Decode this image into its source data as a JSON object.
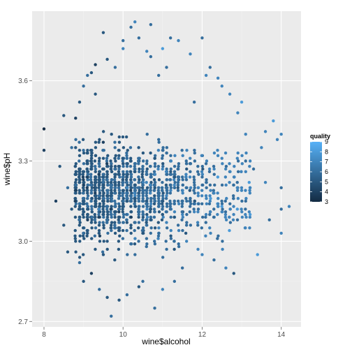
{
  "chart_data": {
    "type": "scatter",
    "title": "",
    "xlabel": "wine$alcohol",
    "ylabel": "wine$pH",
    "xlim": [
      7.7,
      14.5
    ],
    "ylim": [
      2.68,
      3.86
    ],
    "x_ticks": [
      8,
      10,
      12,
      14
    ],
    "y_ticks": [
      2.7,
      3.0,
      3.3,
      3.6
    ],
    "x_tick_labels": [
      "8",
      "10",
      "12",
      "14"
    ],
    "y_tick_labels": [
      "2.7",
      "3.0",
      "3.3",
      "3.6"
    ],
    "grid": true,
    "background_color": "#ebebeb",
    "grid_major_color": "#ffffff",
    "grid_minor_color": "#f4f4f4",
    "legend": {
      "title": "quality",
      "placement": "right",
      "type": "colorbar",
      "min": 3,
      "max": 9,
      "labels": [
        "9",
        "8",
        "7",
        "6",
        "5",
        "4",
        "3"
      ],
      "values": [
        9,
        8,
        7,
        6,
        5,
        4,
        3
      ],
      "color_low": "#132b43",
      "color_high": "#56b1f7"
    },
    "points": [
      {
        "x": 8.0,
        "y": 3.42,
        "q": 3
      },
      {
        "x": 8.0,
        "y": 3.34,
        "q": 4
      },
      {
        "x": 8.5,
        "y": 3.06,
        "q": 5
      },
      {
        "x": 8.5,
        "y": 3.47,
        "q": 5
      },
      {
        "x": 8.6,
        "y": 3.2,
        "q": 6
      },
      {
        "x": 8.7,
        "y": 3.12,
        "q": 5
      },
      {
        "x": 8.7,
        "y": 3.35,
        "q": 6
      },
      {
        "x": 8.8,
        "y": 3.0,
        "q": 5
      },
      {
        "x": 8.8,
        "y": 3.25,
        "q": 5
      },
      {
        "x": 8.8,
        "y": 3.46,
        "q": 4
      },
      {
        "x": 8.9,
        "y": 2.92,
        "q": 6
      },
      {
        "x": 8.9,
        "y": 3.52,
        "q": 5
      },
      {
        "x": 9.0,
        "y": 2.85,
        "q": 5
      },
      {
        "x": 9.0,
        "y": 3.58,
        "q": 6
      },
      {
        "x": 9.1,
        "y": 3.62,
        "q": 6
      },
      {
        "x": 9.2,
        "y": 2.88,
        "q": 4
      },
      {
        "x": 9.3,
        "y": 3.55,
        "q": 5
      },
      {
        "x": 9.4,
        "y": 2.82,
        "q": 6
      },
      {
        "x": 9.5,
        "y": 3.78,
        "q": 5
      },
      {
        "x": 9.5,
        "y": 2.95,
        "q": 5
      },
      {
        "x": 9.6,
        "y": 3.68,
        "q": 5
      },
      {
        "x": 9.7,
        "y": 2.72,
        "q": 6
      },
      {
        "x": 9.8,
        "y": 3.65,
        "q": 6
      },
      {
        "x": 9.9,
        "y": 2.78,
        "q": 5
      },
      {
        "x": 10.0,
        "y": 3.72,
        "q": 7
      },
      {
        "x": 10.1,
        "y": 2.8,
        "q": 6
      },
      {
        "x": 10.2,
        "y": 3.8,
        "q": 6
      },
      {
        "x": 10.3,
        "y": 3.82,
        "q": 7
      },
      {
        "x": 10.4,
        "y": 3.76,
        "q": 6
      },
      {
        "x": 10.5,
        "y": 2.85,
        "q": 6
      },
      {
        "x": 10.6,
        "y": 3.71,
        "q": 7
      },
      {
        "x": 10.7,
        "y": 3.81,
        "q": 6
      },
      {
        "x": 10.8,
        "y": 2.75,
        "q": 6
      },
      {
        "x": 10.9,
        "y": 3.62,
        "q": 6
      },
      {
        "x": 11.0,
        "y": 2.82,
        "q": 7
      },
      {
        "x": 11.1,
        "y": 3.65,
        "q": 6
      },
      {
        "x": 11.2,
        "y": 3.76,
        "q": 6
      },
      {
        "x": 11.4,
        "y": 3.75,
        "q": 7
      },
      {
        "x": 11.5,
        "y": 2.9,
        "q": 6
      },
      {
        "x": 11.7,
        "y": 3.7,
        "q": 7
      },
      {
        "x": 11.8,
        "y": 3.52,
        "q": 6
      },
      {
        "x": 12.0,
        "y": 2.95,
        "q": 7
      },
      {
        "x": 12.1,
        "y": 3.62,
        "q": 7
      },
      {
        "x": 12.2,
        "y": 3.65,
        "q": 6
      },
      {
        "x": 12.3,
        "y": 2.93,
        "q": 6
      },
      {
        "x": 12.5,
        "y": 3.58,
        "q": 7
      },
      {
        "x": 12.7,
        "y": 3.55,
        "q": 7
      },
      {
        "x": 12.8,
        "y": 2.88,
        "q": 5
      },
      {
        "x": 13.0,
        "y": 3.52,
        "q": 8
      },
      {
        "x": 13.1,
        "y": 3.4,
        "q": 7
      },
      {
        "x": 13.2,
        "y": 3.05,
        "q": 7
      },
      {
        "x": 13.3,
        "y": 3.27,
        "q": 6
      },
      {
        "x": 13.4,
        "y": 2.95,
        "q": 8
      },
      {
        "x": 13.5,
        "y": 3.35,
        "q": 7
      },
      {
        "x": 13.6,
        "y": 3.22,
        "q": 7
      },
      {
        "x": 13.6,
        "y": 3.41,
        "q": 7
      },
      {
        "x": 13.7,
        "y": 3.08,
        "q": 6
      },
      {
        "x": 13.8,
        "y": 3.45,
        "q": 8
      },
      {
        "x": 13.9,
        "y": 3.38,
        "q": 7
      },
      {
        "x": 14.0,
        "y": 3.4,
        "q": 7
      },
      {
        "x": 14.0,
        "y": 3.12,
        "q": 6
      },
      {
        "x": 14.0,
        "y": 3.03,
        "q": 7
      },
      {
        "x": 14.0,
        "y": 3.2,
        "q": 6
      },
      {
        "x": 14.2,
        "y": 3.13,
        "q": 7
      },
      {
        "x": 12.0,
        "y": 3.76,
        "q": 6
      },
      {
        "x": 11.0,
        "y": 3.72,
        "q": 8
      },
      {
        "x": 10.0,
        "y": 3.75,
        "q": 6
      },
      {
        "x": 9.3,
        "y": 3.66,
        "q": 4
      },
      {
        "x": 9.6,
        "y": 2.79,
        "q": 5
      },
      {
        "x": 10.4,
        "y": 2.83,
        "q": 5
      },
      {
        "x": 11.3,
        "y": 2.85,
        "q": 6
      },
      {
        "x": 12.6,
        "y": 2.9,
        "q": 7
      },
      {
        "x": 8.6,
        "y": 2.96,
        "q": 5
      },
      {
        "x": 9.2,
        "y": 3.63,
        "q": 5
      },
      {
        "x": 8.4,
        "y": 3.28,
        "q": 5
      },
      {
        "x": 8.3,
        "y": 3.15,
        "q": 4
      },
      {
        "x": 12.9,
        "y": 3.48,
        "q": 7
      },
      {
        "x": 13.1,
        "y": 3.3,
        "q": 6
      },
      {
        "x": 12.4,
        "y": 3.61,
        "q": 7
      },
      {
        "x": 10.7,
        "y": 3.69,
        "q": 6
      }
    ]
  }
}
